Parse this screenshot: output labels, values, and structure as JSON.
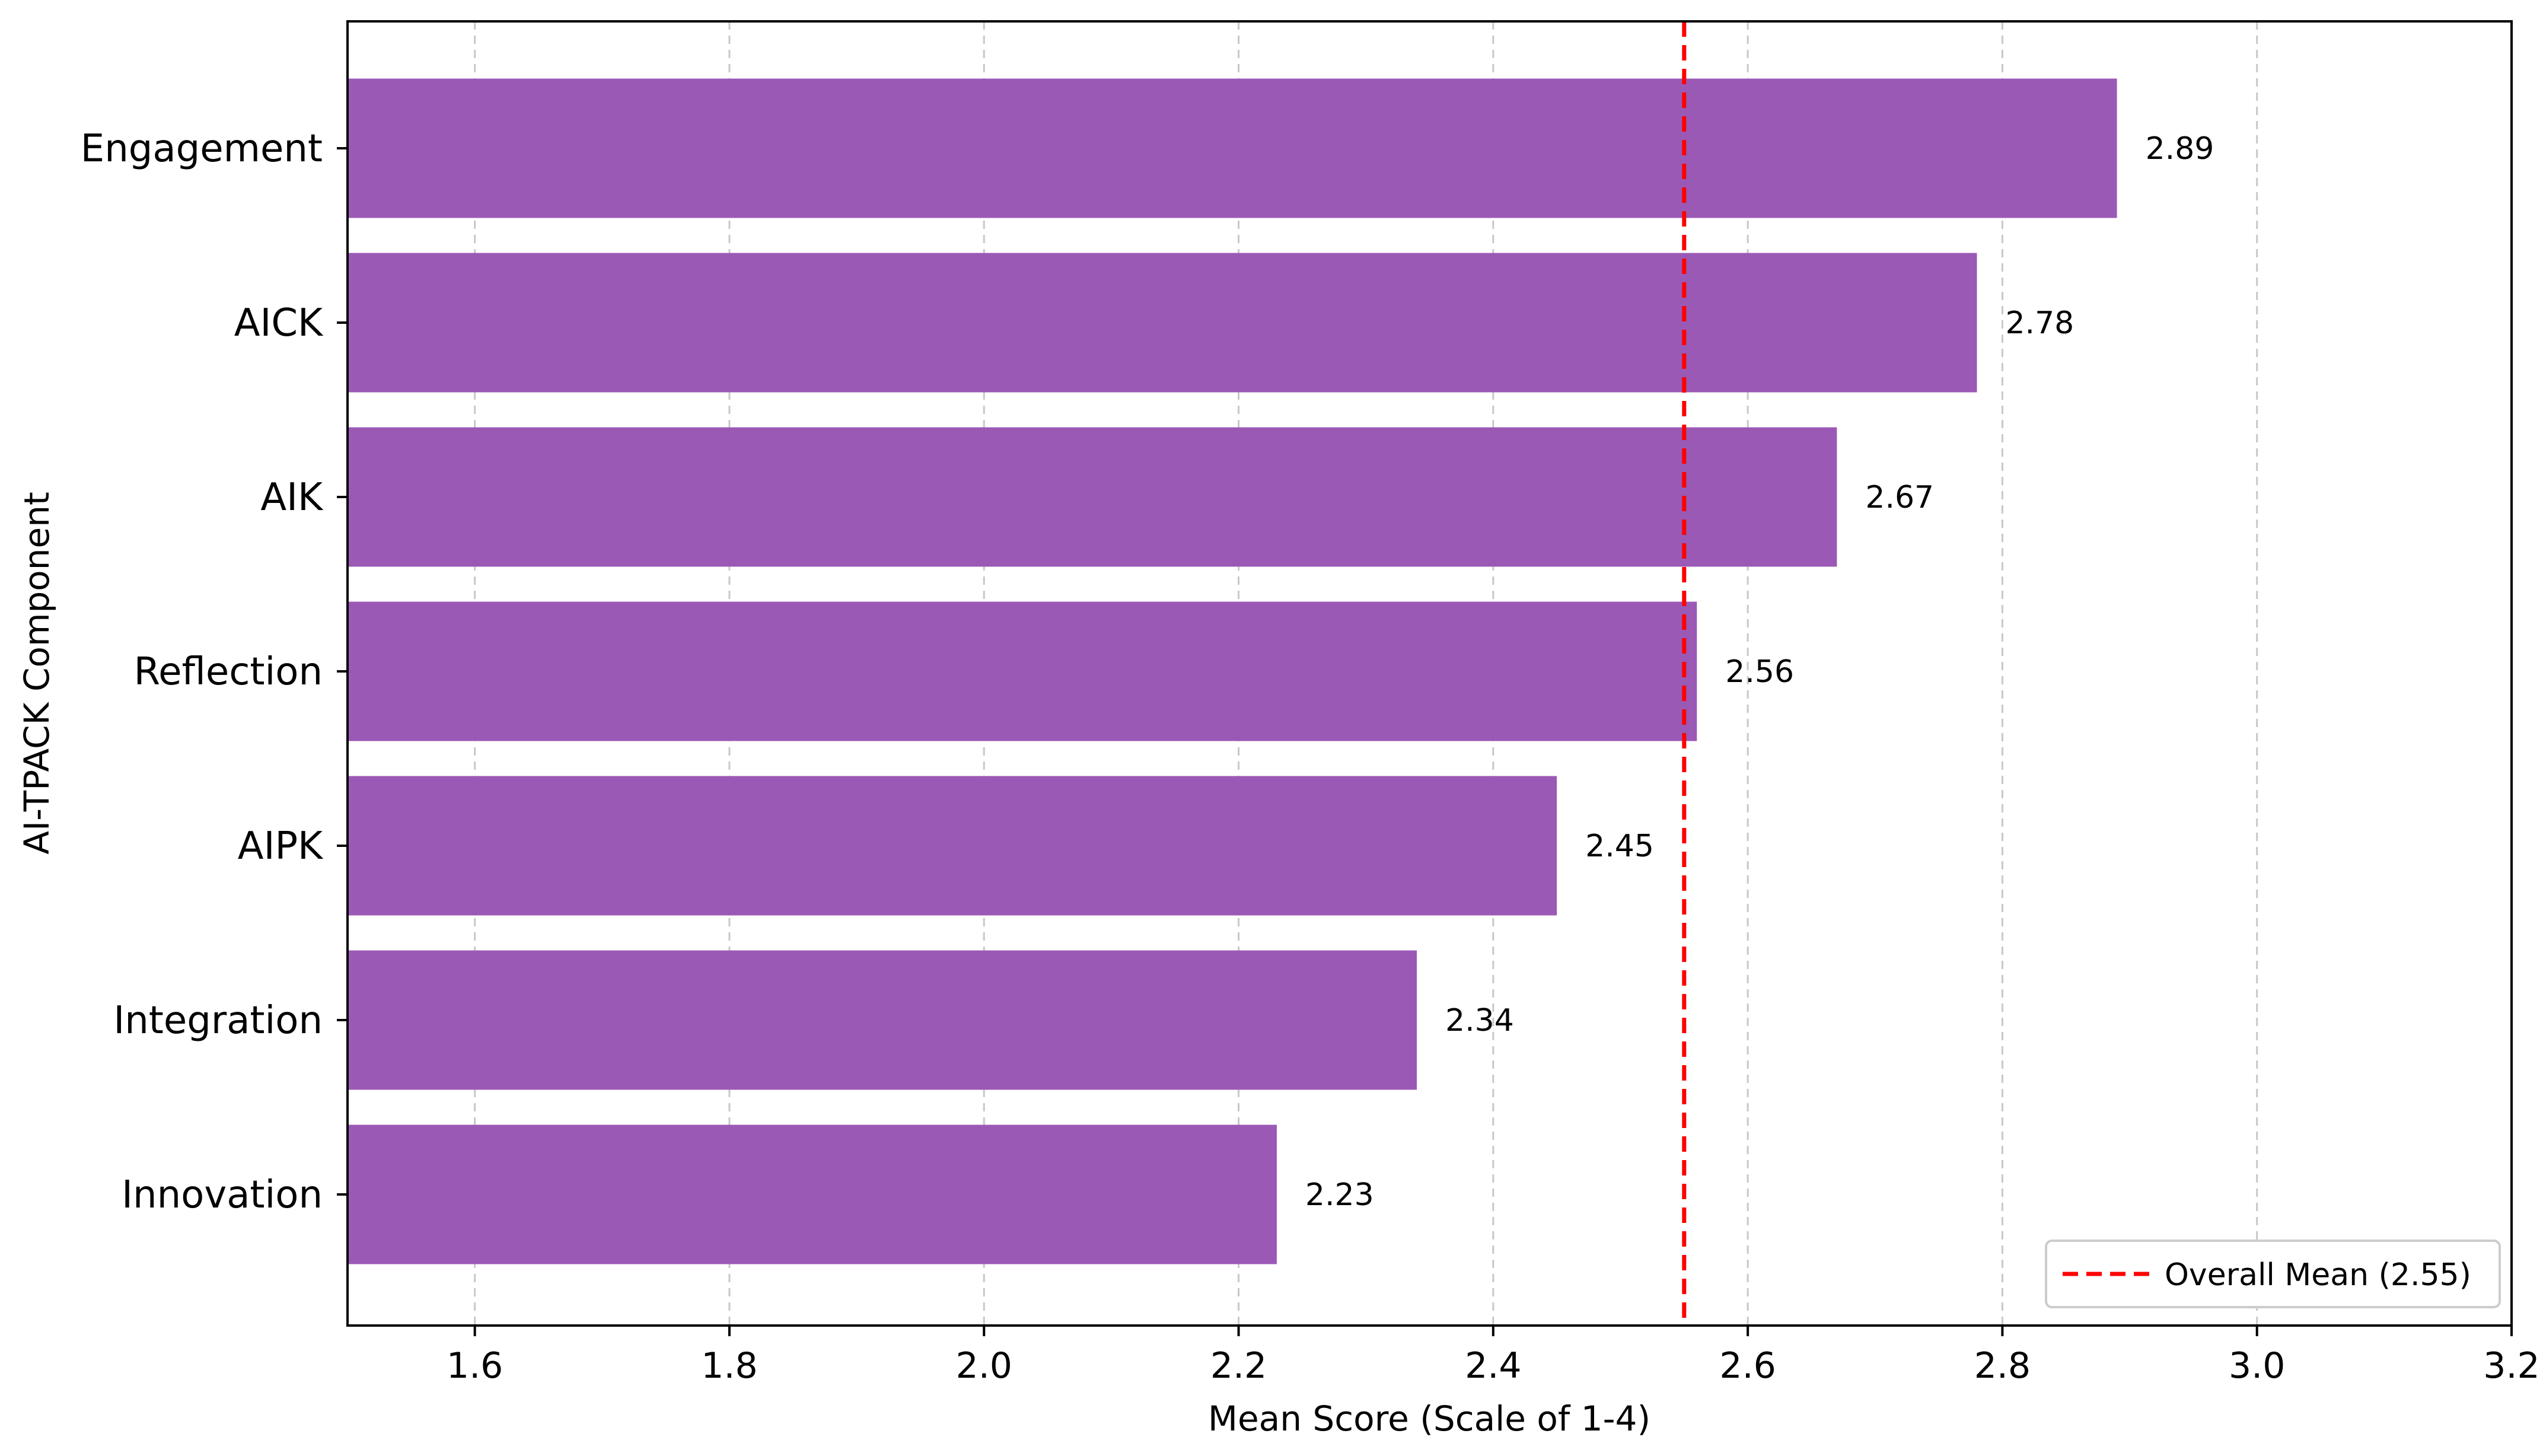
{
  "chart_data": {
    "type": "bar",
    "orientation": "horizontal",
    "categories": [
      "Engagement",
      "AICK",
      "AIK",
      "Reflection",
      "AIPK",
      "Integration",
      "Innovation"
    ],
    "values": [
      2.89,
      2.78,
      2.67,
      2.56,
      2.45,
      2.34,
      2.23
    ],
    "data_labels": [
      "2.89",
      "2.78",
      "2.67",
      "2.56",
      "2.45",
      "2.34",
      "2.23"
    ],
    "title": "",
    "xlabel": "Mean Score (Scale of 1-4)",
    "ylabel": "AI-TPACK Component",
    "xlim": [
      1.5,
      3.2
    ],
    "xticks": [
      1.6,
      1.8,
      2.0,
      2.2,
      2.4,
      2.6,
      2.8,
      3.0,
      3.2
    ],
    "xtick_labels": [
      "1.6",
      "1.8",
      "2.0",
      "2.2",
      "2.4",
      "2.6",
      "2.8",
      "3.0",
      "3.2"
    ],
    "grid": "x-dashed",
    "reference_line": {
      "value": 2.55,
      "label": "Overall Mean (2.55)",
      "color": "#ff0000",
      "style": "dashed"
    },
    "bar_color": "#9b59b6",
    "legend": {
      "location": "lower-right",
      "entries": [
        "Overall Mean (2.55)"
      ]
    }
  }
}
